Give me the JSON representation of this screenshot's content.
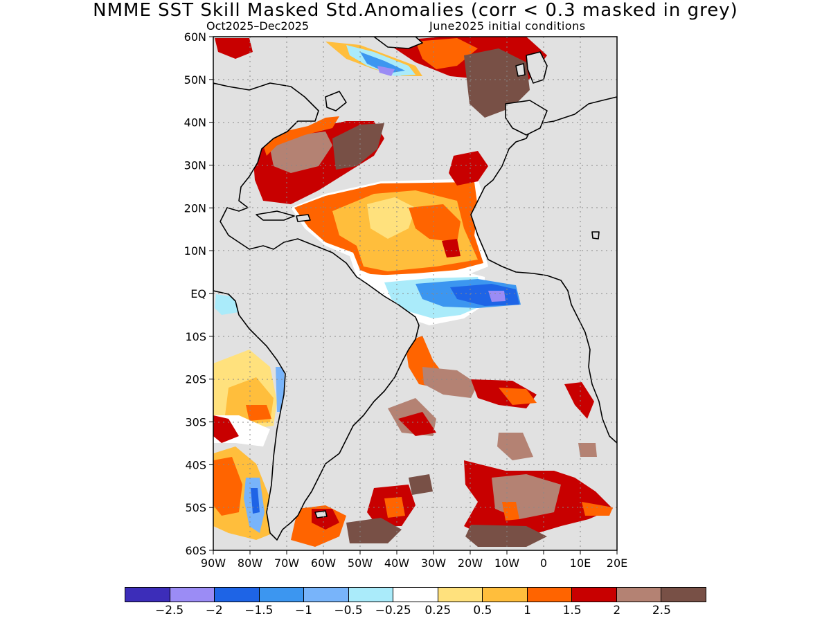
{
  "title": "NMME  SST Skill Masked Std.Anomalies (corr < 0.3 masked in grey)",
  "subtitle_left": "Oct2025–Dec2025",
  "subtitle_right": "June2025 initial conditions",
  "map": {
    "lat_range": [
      -60,
      60
    ],
    "lon_range": [
      -90,
      20
    ],
    "lat_ticks": [
      60,
      50,
      40,
      30,
      20,
      10,
      0,
      -10,
      -20,
      -30,
      -40,
      -50,
      -60
    ],
    "lat_tick_labels": [
      "60N",
      "50N",
      "40N",
      "30N",
      "20N",
      "10N",
      "EQ",
      "10S",
      "20S",
      "30S",
      "40S",
      "50S",
      "60S"
    ],
    "lon_ticks": [
      -90,
      -80,
      -70,
      -60,
      -50,
      -40,
      -30,
      -20,
      -10,
      0,
      10,
      20
    ],
    "lon_tick_labels": [
      "90W",
      "80W",
      "70W",
      "60W",
      "50W",
      "40W",
      "30W",
      "20W",
      "10W",
      "0",
      "10E",
      "20E"
    ],
    "grid": "dotted",
    "mask_color": "#e1e1e1",
    "land_color": "#e1e1e1"
  },
  "colorbar": {
    "colors": [
      "#3c2db9",
      "#9b8cf5",
      "#1e64e6",
      "#3c96f0",
      "#78b4fa",
      "#aaebfa",
      "#ffffff",
      "#ffe17d",
      "#ffbe3c",
      "#ff6400",
      "#c80000",
      "#b48273",
      "#785046"
    ],
    "labels": [
      "−2.5",
      "−2",
      "−1.5",
      "−1",
      "−0.5",
      "−0.25",
      "0.25",
      "0.5",
      "1",
      "1.5",
      "2",
      "2.5"
    ]
  }
}
